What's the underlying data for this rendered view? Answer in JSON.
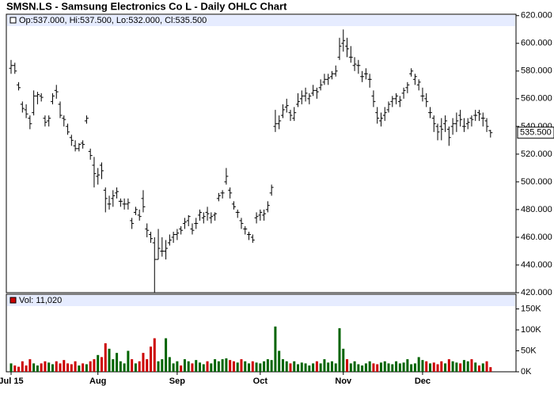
{
  "chart_data": {
    "type": "ohlc",
    "title": "SMSN.LS - Samsung Electronics Co L - Daily OHLC Chart",
    "info": "Op:537.000, Hi:537.500, Lo:532.000, Cl:535.500",
    "volume_info": "Vol: 11,020",
    "last_price": {
      "value": 535.5,
      "label": "535.500"
    },
    "xlim": [
      -1.26,
      133.75
    ],
    "xticks": [
      {
        "value": 0,
        "label": "Jul 15"
      },
      {
        "value": 23,
        "label": "Aug"
      },
      {
        "value": 44,
        "label": "Sep"
      },
      {
        "value": 66,
        "label": "Oct"
      },
      {
        "value": 88,
        "label": "Nov"
      },
      {
        "value": 109,
        "label": "Dec"
      }
    ],
    "ylim": [
      420,
      621
    ],
    "yticks": [
      {
        "value": 420,
        "label": "420.000"
      },
      {
        "value": 440,
        "label": "440.000"
      },
      {
        "value": 460,
        "label": "460.000"
      },
      {
        "value": 480,
        "label": "480.000"
      },
      {
        "value": 500,
        "label": "500.000"
      },
      {
        "value": 520,
        "label": "520.000"
      },
      {
        "value": 540,
        "label": "540.000"
      },
      {
        "value": 560,
        "label": "560.000"
      },
      {
        "value": 580,
        "label": "580.000"
      },
      {
        "value": 600,
        "label": "600.000"
      },
      {
        "value": 620,
        "label": "620.000"
      }
    ],
    "volume_ylim": [
      0,
      185000
    ],
    "volume_yticks": [
      {
        "value": 0,
        "label": "0K"
      },
      {
        "value": 50000,
        "label": "50K"
      },
      {
        "value": 100000,
        "label": "100K"
      },
      {
        "value": 150000,
        "label": "150K"
      }
    ],
    "up_color": "#006400",
    "down_color": "#cc0000",
    "bar_color": "#000000",
    "ohlc": [
      [
        582,
        588,
        578,
        584
      ],
      [
        584,
        586,
        578,
        580
      ],
      [
        570,
        572,
        566,
        568
      ],
      [
        556,
        558,
        550,
        553
      ],
      [
        552,
        556,
        546,
        549
      ],
      [
        546,
        548,
        538,
        542
      ],
      [
        550,
        566,
        548,
        562
      ],
      [
        562,
        565,
        556,
        563
      ],
      [
        562,
        564,
        558,
        561
      ],
      [
        546,
        548,
        540,
        543
      ],
      [
        544,
        548,
        540,
        546
      ],
      [
        558,
        564,
        556,
        562
      ],
      [
        566,
        570,
        560,
        565
      ],
      [
        556,
        558,
        546,
        548
      ],
      [
        546,
        548,
        540,
        545
      ],
      [
        540,
        542,
        534,
        536
      ],
      [
        532,
        534,
        526,
        530
      ],
      [
        526,
        530,
        522,
        524
      ],
      [
        524,
        528,
        522,
        527
      ],
      [
        528,
        530,
        524,
        527
      ],
      [
        544,
        548,
        542,
        546
      ],
      [
        522,
        524,
        516,
        519
      ],
      [
        512,
        518,
        496,
        506
      ],
      [
        504,
        510,
        498,
        505
      ],
      [
        512,
        514,
        502,
        508
      ],
      [
        494,
        496,
        478,
        488
      ],
      [
        484,
        490,
        480,
        484
      ],
      [
        488,
        494,
        482,
        490
      ],
      [
        492,
        496,
        488,
        493
      ],
      [
        486,
        488,
        482,
        486
      ],
      [
        484,
        488,
        480,
        484
      ],
      [
        484,
        488,
        480,
        485
      ],
      [
        472,
        474,
        466,
        470
      ],
      [
        478,
        482,
        476,
        480
      ],
      [
        476,
        480,
        472,
        475
      ],
      [
        488,
        494,
        478,
        482
      ],
      [
        466,
        470,
        460,
        465
      ],
      [
        462,
        464,
        456,
        459
      ],
      [
        456,
        460,
        420,
        444
      ],
      [
        444,
        466,
        444,
        452
      ],
      [
        450,
        460,
        446,
        450
      ],
      [
        450,
        458,
        444,
        452
      ],
      [
        456,
        462,
        454,
        458
      ],
      [
        460,
        464,
        456,
        462
      ],
      [
        462,
        466,
        458,
        463
      ],
      [
        466,
        468,
        462,
        465
      ],
      [
        470,
        474,
        466,
        471
      ],
      [
        472,
        476,
        468,
        475
      ],
      [
        466,
        470,
        462,
        465
      ],
      [
        470,
        474,
        466,
        470
      ],
      [
        476,
        480,
        472,
        478
      ],
      [
        474,
        478,
        470,
        475
      ],
      [
        478,
        482,
        472,
        477
      ],
      [
        474,
        478,
        470,
        475
      ],
      [
        476,
        478,
        472,
        477
      ],
      [
        488,
        492,
        486,
        490
      ],
      [
        492,
        494,
        488,
        492
      ],
      [
        500,
        510,
        498,
        504
      ],
      [
        494,
        496,
        488,
        492
      ],
      [
        484,
        486,
        480,
        482
      ],
      [
        478,
        480,
        474,
        478
      ],
      [
        472,
        474,
        466,
        470
      ],
      [
        466,
        468,
        462,
        466
      ],
      [
        462,
        464,
        458,
        462
      ],
      [
        460,
        462,
        456,
        458
      ],
      [
        474,
        478,
        470,
        475
      ],
      [
        476,
        480,
        472,
        478
      ],
      [
        476,
        480,
        472,
        477
      ],
      [
        480,
        486,
        478,
        483
      ],
      [
        492,
        498,
        490,
        496
      ],
      [
        540,
        552,
        536,
        542
      ],
      [
        542,
        548,
        538,
        544
      ],
      [
        548,
        556,
        546,
        552
      ],
      [
        554,
        560,
        550,
        555
      ],
      [
        550,
        552,
        544,
        548
      ],
      [
        546,
        554,
        544,
        550
      ],
      [
        556,
        564,
        554,
        558
      ],
      [
        560,
        566,
        556,
        562
      ],
      [
        562,
        568,
        558,
        564
      ],
      [
        560,
        564,
        556,
        562
      ],
      [
        564,
        570,
        562,
        566
      ],
      [
        566,
        568,
        560,
        565
      ],
      [
        568,
        574,
        566,
        570
      ],
      [
        572,
        578,
        570,
        574
      ],
      [
        574,
        578,
        570,
        575
      ],
      [
        576,
        580,
        574,
        578
      ],
      [
        578,
        584,
        576,
        580
      ],
      [
        590,
        604,
        588,
        598
      ],
      [
        600,
        610,
        594,
        602
      ],
      [
        598,
        604,
        590,
        596
      ],
      [
        590,
        598,
        586,
        590
      ],
      [
        584,
        590,
        580,
        585
      ],
      [
        584,
        588,
        578,
        584
      ],
      [
        576,
        580,
        572,
        576
      ],
      [
        578,
        582,
        574,
        578
      ],
      [
        574,
        578,
        568,
        574
      ],
      [
        562,
        566,
        554,
        558
      ],
      [
        550,
        554,
        542,
        546
      ],
      [
        544,
        550,
        540,
        546
      ],
      [
        548,
        554,
        544,
        550
      ],
      [
        552,
        558,
        550,
        556
      ],
      [
        558,
        562,
        554,
        560
      ],
      [
        560,
        564,
        556,
        562
      ],
      [
        558,
        562,
        554,
        559
      ],
      [
        564,
        568,
        560,
        566
      ],
      [
        568,
        572,
        564,
        570
      ],
      [
        578,
        582,
        576,
        580
      ],
      [
        574,
        578,
        570,
        576
      ],
      [
        570,
        574,
        566,
        572
      ],
      [
        562,
        568,
        558,
        562
      ],
      [
        560,
        564,
        554,
        558
      ],
      [
        550,
        554,
        546,
        550
      ],
      [
        546,
        548,
        536,
        542
      ],
      [
        540,
        542,
        530,
        536
      ],
      [
        540,
        546,
        530,
        538
      ],
      [
        542,
        548,
        536,
        544
      ],
      [
        538,
        540,
        526,
        532
      ],
      [
        540,
        546,
        534,
        542
      ],
      [
        542,
        550,
        536,
        544
      ],
      [
        548,
        552,
        540,
        545
      ],
      [
        540,
        546,
        536,
        540
      ],
      [
        542,
        546,
        538,
        543
      ],
      [
        546,
        548,
        540,
        545
      ],
      [
        548,
        552,
        544,
        548
      ],
      [
        550,
        552,
        544,
        549
      ],
      [
        546,
        550,
        540,
        546
      ],
      [
        544,
        546,
        536,
        540
      ],
      [
        537,
        537.5,
        532,
        535.5
      ]
    ],
    "volume": [
      20000,
      15000,
      12000,
      25000,
      15000,
      30000,
      20000,
      15000,
      20000,
      25000,
      22000,
      18000,
      25000,
      20000,
      28000,
      20000,
      18000,
      25000,
      15000,
      20000,
      18000,
      25000,
      30000,
      40000,
      35000,
      68000,
      55000,
      30000,
      45000,
      25000,
      20000,
      50000,
      30000,
      20000,
      25000,
      45000,
      30000,
      60000,
      80000,
      25000,
      30000,
      80000,
      35000,
      20000,
      25000,
      15000,
      30000,
      25000,
      20000,
      28000,
      22000,
      18000,
      25000,
      20000,
      30000,
      25000,
      30000,
      32000,
      28000,
      25000,
      22000,
      30000,
      25000,
      20000,
      25000,
      22000,
      20000,
      25000,
      30000,
      28000,
      108000,
      50000,
      30000,
      25000,
      20000,
      25000,
      18000,
      22000,
      20000,
      15000,
      20000,
      25000,
      20000,
      30000,
      22000,
      25000,
      20000,
      104000,
      55000,
      30000,
      20000,
      25000,
      18000,
      15000,
      20000,
      25000,
      20000,
      18000,
      22000,
      25000,
      20000,
      18000,
      25000,
      20000,
      22000,
      30000,
      18000,
      20000,
      35000,
      28000,
      25000,
      20000,
      22000,
      18000,
      25000,
      20000,
      30000,
      25000,
      22000,
      20000,
      28000,
      25000,
      30000,
      22000,
      15000,
      20000,
      25000,
      11020
    ]
  }
}
